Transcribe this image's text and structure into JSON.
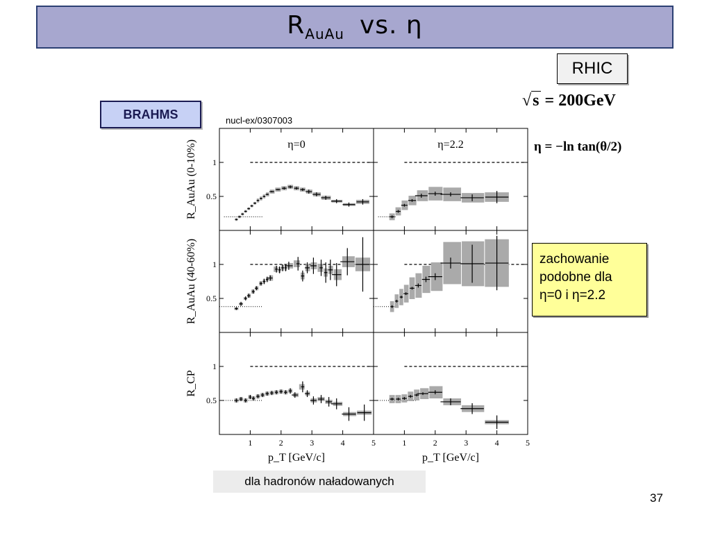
{
  "slide": {
    "title_main": "R",
    "title_sub": "AuAu",
    "title_rest": "vs.  η",
    "rhic_label": "RHIC",
    "sqrt_s_radical": "√",
    "sqrt_s_var": "s",
    "sqrt_s_value": " = 200GeV",
    "brahms_label": "BRAHMS",
    "source": "nucl-ex/0307003",
    "eta_definition": "η = −ln tan(θ/2)",
    "note_lines": [
      "zachowanie",
      "podobne dla",
      "η=0 i η=2.2"
    ],
    "caption": "dla hadronów naładowanych",
    "page_number": "37"
  },
  "chart_data": {
    "type": "scatter",
    "layout": "3 rows x 2 columns",
    "x_label": "p_T [GeV/c]",
    "xlim": [
      0,
      5
    ],
    "x_ticks": [
      1,
      2,
      3,
      4,
      5
    ],
    "y_ticks": [
      0.5,
      1
    ],
    "reference_dashed_line": 1,
    "columns": [
      "η=0",
      "η=2.2"
    ],
    "rows": [
      {
        "y_label": "R_AuAu (0-10%)"
      },
      {
        "y_label": "R_AuAu (40-60%)"
      },
      {
        "y_label": "R_CP"
      }
    ],
    "panels": [
      {
        "row": 0,
        "col": 0,
        "ylim": [
          0,
          1.5
        ],
        "dotted_level": [
          0.2,
          0.15,
          1.4
        ],
        "x": [
          0.55,
          0.65,
          0.75,
          0.85,
          0.95,
          1.05,
          1.15,
          1.25,
          1.35,
          1.45,
          1.55,
          1.7,
          1.9,
          2.1,
          2.3,
          2.5,
          2.7,
          2.9,
          3.15,
          3.45,
          3.8,
          4.2,
          4.65
        ],
        "y": [
          0.16,
          0.2,
          0.24,
          0.28,
          0.32,
          0.36,
          0.4,
          0.44,
          0.47,
          0.5,
          0.53,
          0.57,
          0.6,
          0.62,
          0.64,
          0.62,
          0.6,
          0.57,
          0.53,
          0.48,
          0.43,
          0.38,
          0.42
        ],
        "err": [
          0.01,
          0.01,
          0.01,
          0.01,
          0.01,
          0.01,
          0.01,
          0.01,
          0.01,
          0.01,
          0.01,
          0.01,
          0.01,
          0.02,
          0.02,
          0.02,
          0.02,
          0.03,
          0.03,
          0.03,
          0.03,
          0.03,
          0.04
        ],
        "sys": [
          0.02,
          0.02,
          0.02,
          0.02,
          0.02,
          0.02,
          0.02,
          0.03,
          0.03,
          0.03,
          0.03,
          0.03,
          0.03,
          0.03,
          0.03,
          0.03,
          0.03,
          0.03,
          0.03,
          0.03,
          0.02,
          0.02,
          0.03
        ]
      },
      {
        "row": 0,
        "col": 1,
        "ylim": [
          0,
          1.5
        ],
        "dotted_level": [
          0.2,
          0.15,
          0.75
        ],
        "x": [
          0.6,
          0.8,
          1.0,
          1.25,
          1.55,
          2.0,
          2.5,
          3.2,
          4.0
        ],
        "y": [
          0.2,
          0.28,
          0.37,
          0.44,
          0.51,
          0.54,
          0.53,
          0.48,
          0.49
        ],
        "err": [
          0.02,
          0.02,
          0.02,
          0.02,
          0.03,
          0.03,
          0.03,
          0.05,
          0.09
        ],
        "sys": [
          0.05,
          0.06,
          0.07,
          0.07,
          0.08,
          0.1,
          0.1,
          0.07,
          0.07
        ]
      },
      {
        "row": 1,
        "col": 0,
        "ylim": [
          0,
          1.5
        ],
        "dotted_level": [
          0.38,
          0.0,
          1.4
        ],
        "x": [
          0.55,
          0.7,
          0.85,
          0.95,
          1.1,
          1.2,
          1.35,
          1.45,
          1.55,
          1.65,
          1.85,
          1.95,
          2.05,
          2.15,
          2.25,
          2.55,
          2.7,
          2.85,
          3.05,
          3.3,
          3.45,
          3.6,
          3.8,
          4.15,
          4.65
        ],
        "y": [
          0.35,
          0.42,
          0.5,
          0.54,
          0.6,
          0.65,
          0.72,
          0.75,
          0.78,
          0.8,
          0.93,
          0.92,
          0.95,
          0.95,
          0.98,
          1.01,
          0.83,
          0.95,
          0.98,
          0.95,
          0.88,
          0.92,
          0.85,
          1.04,
          1.0
        ],
        "err": [
          0.02,
          0.03,
          0.03,
          0.03,
          0.03,
          0.03,
          0.03,
          0.04,
          0.04,
          0.04,
          0.05,
          0.05,
          0.05,
          0.05,
          0.06,
          0.1,
          0.08,
          0.08,
          0.12,
          0.12,
          0.15,
          0.15,
          0.17,
          0.2,
          0.4
        ],
        "sys": [
          0.02,
          0.02,
          0.02,
          0.03,
          0.03,
          0.03,
          0.03,
          0.03,
          0.03,
          0.04,
          0.04,
          0.04,
          0.04,
          0.04,
          0.04,
          0.05,
          0.05,
          0.05,
          0.05,
          0.06,
          0.06,
          0.06,
          0.08,
          0.08,
          0.1
        ]
      },
      {
        "row": 1,
        "col": 1,
        "ylim": [
          0,
          1.5
        ],
        "dotted_level": [
          0.38,
          0.0,
          0.75
        ],
        "x": [
          0.6,
          0.75,
          0.9,
          1.05,
          1.25,
          1.45,
          1.7,
          2.0,
          2.5,
          3.2,
          4.0
        ],
        "y": [
          0.38,
          0.46,
          0.52,
          0.57,
          0.65,
          0.69,
          0.78,
          0.82,
          1.02,
          1.01,
          1.02
        ],
        "err": [
          0.02,
          0.02,
          0.02,
          0.02,
          0.02,
          0.03,
          0.04,
          0.05,
          0.08,
          0.28,
          0.4
        ],
        "sys": [
          0.08,
          0.1,
          0.12,
          0.13,
          0.16,
          0.18,
          0.2,
          0.21,
          0.31,
          0.33,
          0.35
        ]
      },
      {
        "row": 2,
        "col": 0,
        "ylim": [
          0,
          1.5
        ],
        "dotted_level": [
          0.5,
          0.0,
          1.4
        ],
        "x": [
          0.55,
          0.7,
          0.85,
          1.0,
          1.1,
          1.25,
          1.4,
          1.55,
          1.7,
          1.85,
          2.0,
          2.15,
          2.3,
          2.45,
          2.7,
          2.85,
          3.05,
          3.3,
          3.55,
          3.8,
          4.2,
          4.7
        ],
        "y": [
          0.5,
          0.52,
          0.5,
          0.55,
          0.53,
          0.56,
          0.58,
          0.6,
          0.61,
          0.62,
          0.63,
          0.62,
          0.64,
          0.58,
          0.7,
          0.6,
          0.5,
          0.52,
          0.48,
          0.45,
          0.3,
          0.32
        ],
        "err": [
          0.03,
          0.03,
          0.03,
          0.03,
          0.03,
          0.03,
          0.03,
          0.03,
          0.03,
          0.03,
          0.03,
          0.03,
          0.04,
          0.04,
          0.08,
          0.05,
          0.06,
          0.06,
          0.07,
          0.08,
          0.1,
          0.12
        ],
        "sys": [
          0.03,
          0.03,
          0.03,
          0.03,
          0.03,
          0.03,
          0.03,
          0.03,
          0.03,
          0.03,
          0.03,
          0.03,
          0.03,
          0.03,
          0.04,
          0.03,
          0.03,
          0.03,
          0.03,
          0.03,
          0.03,
          0.03
        ]
      },
      {
        "row": 2,
        "col": 1,
        "ylim": [
          0,
          1.5
        ],
        "dotted_level": [
          0.5,
          0.0,
          1.4
        ],
        "x": [
          0.6,
          0.8,
          1.0,
          1.2,
          1.4,
          1.6,
          2.0,
          2.5,
          3.2,
          4.0
        ],
        "y": [
          0.52,
          0.52,
          0.53,
          0.56,
          0.58,
          0.6,
          0.62,
          0.48,
          0.38,
          0.18
        ],
        "err": [
          0.02,
          0.02,
          0.02,
          0.02,
          0.02,
          0.02,
          0.03,
          0.05,
          0.08,
          0.1
        ],
        "sys": [
          0.06,
          0.06,
          0.06,
          0.07,
          0.08,
          0.08,
          0.09,
          0.05,
          0.05,
          0.03
        ]
      }
    ]
  }
}
